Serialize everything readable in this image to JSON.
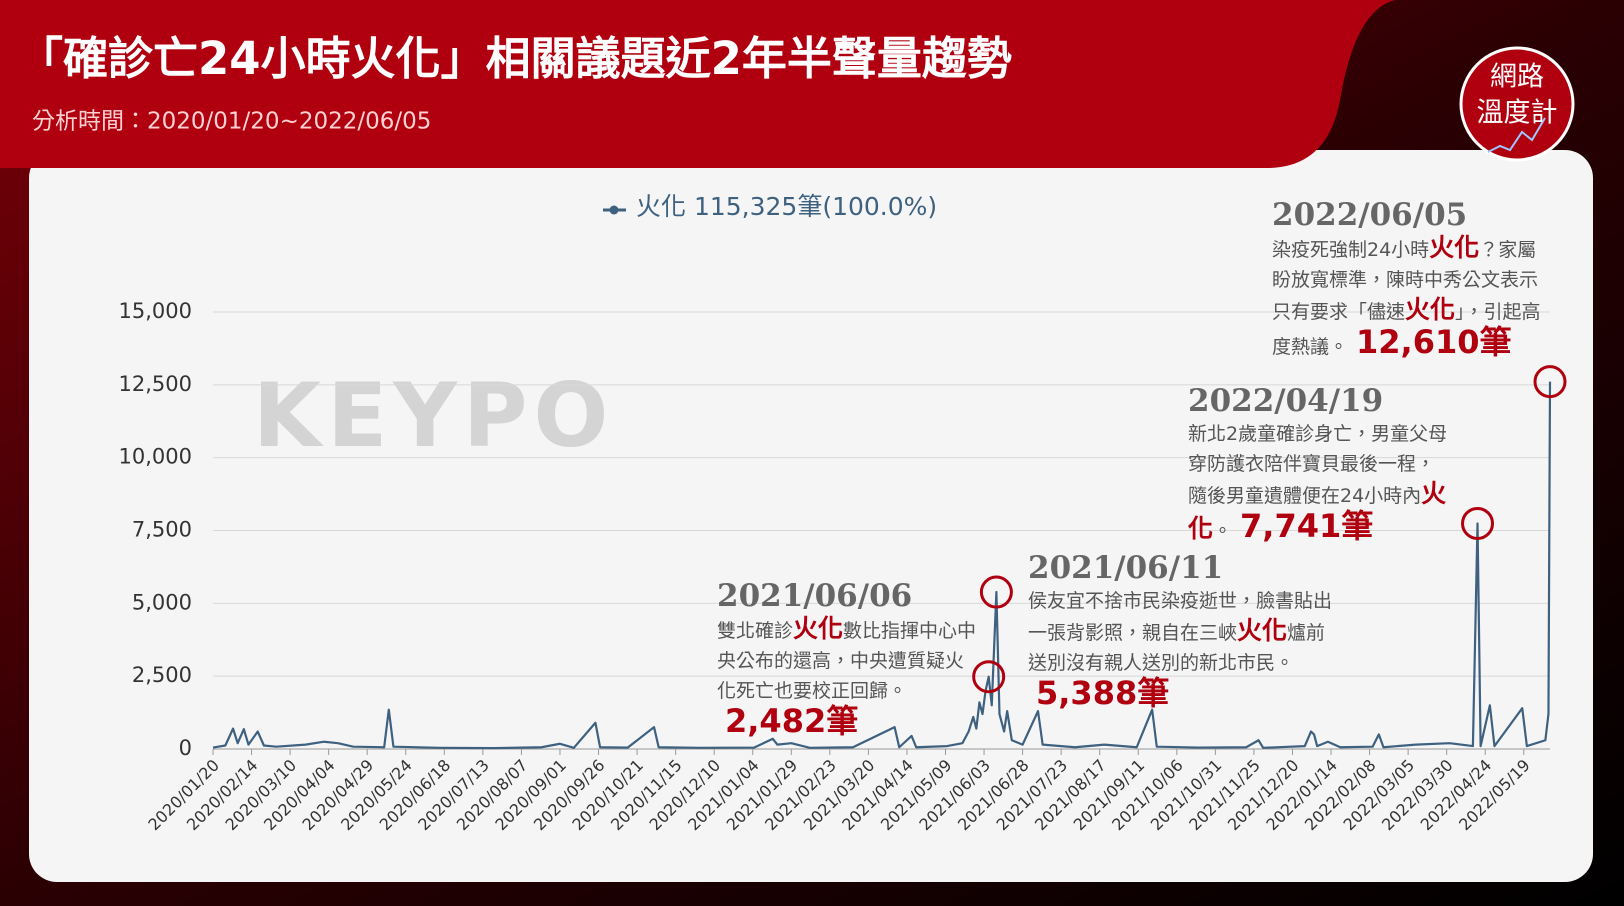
{
  "chart_data": {
    "type": "line",
    "title": "「確診亡24小時火化」相關議題近2年半聲量趨勢",
    "subtitle": "分析時間：2020/01/20~2022/06/05",
    "logo": [
      "網路",
      "溫度計"
    ],
    "watermark": "KEYPO",
    "grid": true,
    "xlim": [
      "2020/01/20",
      "2022/06/05"
    ],
    "xticks": [
      "2020/01/20",
      "2020/02/14",
      "2020/03/10",
      "2020/04/04",
      "2020/04/29",
      "2020/05/24",
      "2020/06/18",
      "2020/07/13",
      "2020/08/07",
      "2020/09/01",
      "2020/09/26",
      "2020/10/21",
      "2020/11/15",
      "2020/12/10",
      "2021/01/04",
      "2021/01/29",
      "2021/02/23",
      "2021/03/20",
      "2021/04/14",
      "2021/05/09",
      "2021/06/03",
      "2021/06/28",
      "2021/07/23",
      "2021/08/17",
      "2021/09/11",
      "2021/10/06",
      "2021/10/31",
      "2021/11/25",
      "2021/12/20",
      "2022/01/14",
      "2022/02/08",
      "2022/03/05",
      "2022/03/30",
      "2022/04/24",
      "2022/05/19"
    ],
    "ylim": [
      0,
      15000
    ],
    "yticks": [
      0,
      {
        "value": 2500,
        "label": "2,500"
      },
      {
        "value": 5000,
        "label": "5,000"
      },
      {
        "value": 7500,
        "label": "7,500"
      },
      {
        "value": 10000,
        "label": "10,000"
      },
      {
        "value": 12500,
        "label": "12,500"
      },
      {
        "value": 15000,
        "label": "15,000"
      }
    ],
    "x": [
      "2020/01/20",
      "2020/01/28",
      "2020/02/02",
      "2020/02/05",
      "2020/02/09",
      "2020/02/12",
      "2020/02/18",
      "2020/02/22",
      "2020/03/01",
      "2020/03/20",
      "2020/04/01",
      "2020/04/10",
      "2020/04/20",
      "2020/05/10",
      "2020/05/13",
      "2020/05/16",
      "2020/06/15",
      "2020/07/20",
      "2020/08/20",
      "2020/09/01",
      "2020/09/10",
      "2020/09/24",
      "2020/09/27",
      "2020/10/15",
      "2020/11/01",
      "2020/11/04",
      "2020/12/01",
      "2021/01/05",
      "2021/01/17",
      "2021/01/20",
      "2021/01/29",
      "2021/02/10",
      "2021/03/10",
      "2021/04/06",
      "2021/04/09",
      "2021/04/17",
      "2021/04/20",
      "2021/05/10",
      "2021/05/20",
      "2021/05/24",
      "2021/05/27",
      "2021/05/29",
      "2021/05/31",
      "2021/06/02",
      "2021/06/04",
      "2021/06/06",
      "2021/06/08",
      "2021/06/11",
      "2021/06/13",
      "2021/06/16",
      "2021/06/18",
      "2021/06/21",
      "2021/06/28",
      "2021/07/08",
      "2021/07/11",
      "2021/08/01",
      "2021/08/20",
      "2021/09/10",
      "2021/09/20",
      "2021/09/23",
      "2021/10/20",
      "2021/11/20",
      "2021/11/28",
      "2021/12/01",
      "2021/12/28",
      "2022/01/01",
      "2022/01/03",
      "2022/01/05",
      "2022/01/12",
      "2022/01/20",
      "2022/02/10",
      "2022/02/14",
      "2022/02/17",
      "2022/03/10",
      "2022/04/01",
      "2022/04/16",
      "2022/04/19",
      "2022/04/21",
      "2022/04/27",
      "2022/04/30",
      "2022/05/18",
      "2022/05/21",
      "2022/06/02",
      "2022/06/04",
      "2022/06/05"
    ],
    "series": [
      {
        "name": "火化 115,325筆(100.0%)",
        "color": "#3e6180",
        "values": [
          50,
          120,
          700,
          200,
          680,
          150,
          600,
          120,
          80,
          150,
          250,
          200,
          80,
          60,
          1350,
          80,
          40,
          30,
          60,
          180,
          40,
          900,
          60,
          50,
          750,
          60,
          40,
          50,
          350,
          150,
          200,
          40,
          60,
          750,
          60,
          450,
          60,
          100,
          200,
          600,
          1100,
          700,
          1600,
          1200,
          2000,
          2482,
          1500,
          5388,
          1200,
          600,
          1300,
          300,
          150,
          1300,
          150,
          60,
          150,
          60,
          1350,
          80,
          50,
          60,
          300,
          40,
          100,
          600,
          500,
          100,
          250,
          60,
          80,
          500,
          60,
          150,
          200,
          100,
          7741,
          100,
          1500,
          100,
          1400,
          100,
          300,
          1200,
          12610
        ]
      }
    ],
    "annotations": [
      {
        "date": "2021/06/06",
        "parts": [
          "雙北確診",
          "火化",
          "數比指揮中心中央公布的還高，中央遭質疑火化死亡也要校正回歸。"
        ],
        "value": 2482,
        "value_label": "2,482筆"
      },
      {
        "date": "2021/06/11",
        "parts": [
          "侯友宜不捨市民染疫逝世，臉書貼出一張背影照，親自在三峽",
          "火化",
          "爐前送別沒有親人送別的新北市民。"
        ],
        "value": 5388,
        "value_label": "5,388筆"
      },
      {
        "date": "2022/04/19",
        "parts": [
          "新北2歲童確診身亡，男童父母穿防護衣陪伴寶貝最後一程，隨後男童遺體便在24小時內",
          "火化",
          "。"
        ],
        "value": 7741,
        "value_label": "7,741筆"
      },
      {
        "date": "2022/06/05",
        "parts": [
          "染疫死強制24小時",
          "火化",
          "？家屬盼放寬標準，陳時中秀公文表示只有要求「儘速",
          "火化",
          "」，引起高度熱議。"
        ],
        "value": 12610,
        "value_label": "12,610筆"
      }
    ]
  }
}
